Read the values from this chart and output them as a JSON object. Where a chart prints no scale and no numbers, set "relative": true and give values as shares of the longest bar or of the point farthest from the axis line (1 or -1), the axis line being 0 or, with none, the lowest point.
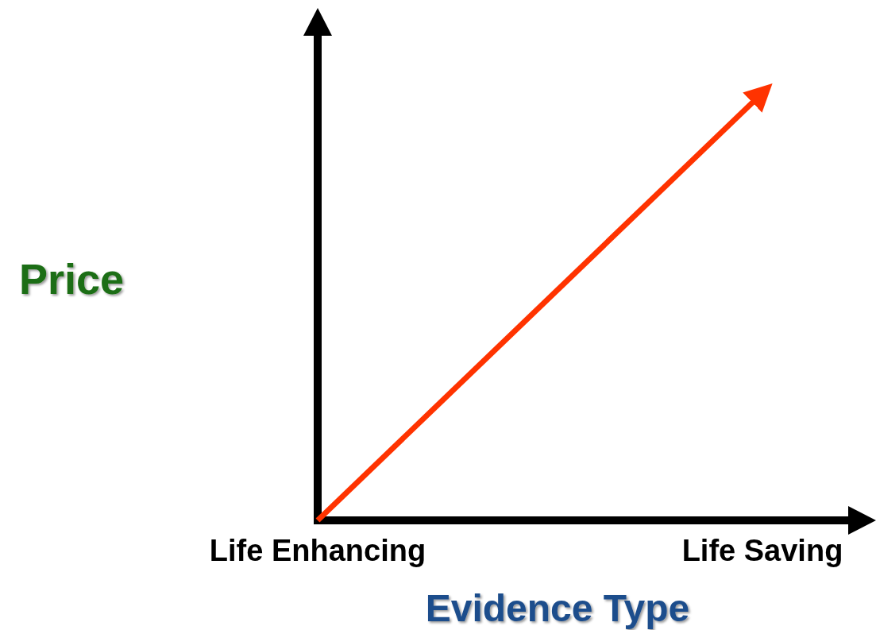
{
  "chart_data": {
    "type": "line",
    "relative": true,
    "xlabel": "Evidence Type",
    "ylabel": "Price",
    "categories": [
      "Life Enhancing",
      "Life Saving"
    ],
    "series": [
      {
        "color": "#ff3300",
        "values": [
          0,
          1
        ]
      }
    ],
    "marker": "none",
    "line_style": "solid"
  }
}
